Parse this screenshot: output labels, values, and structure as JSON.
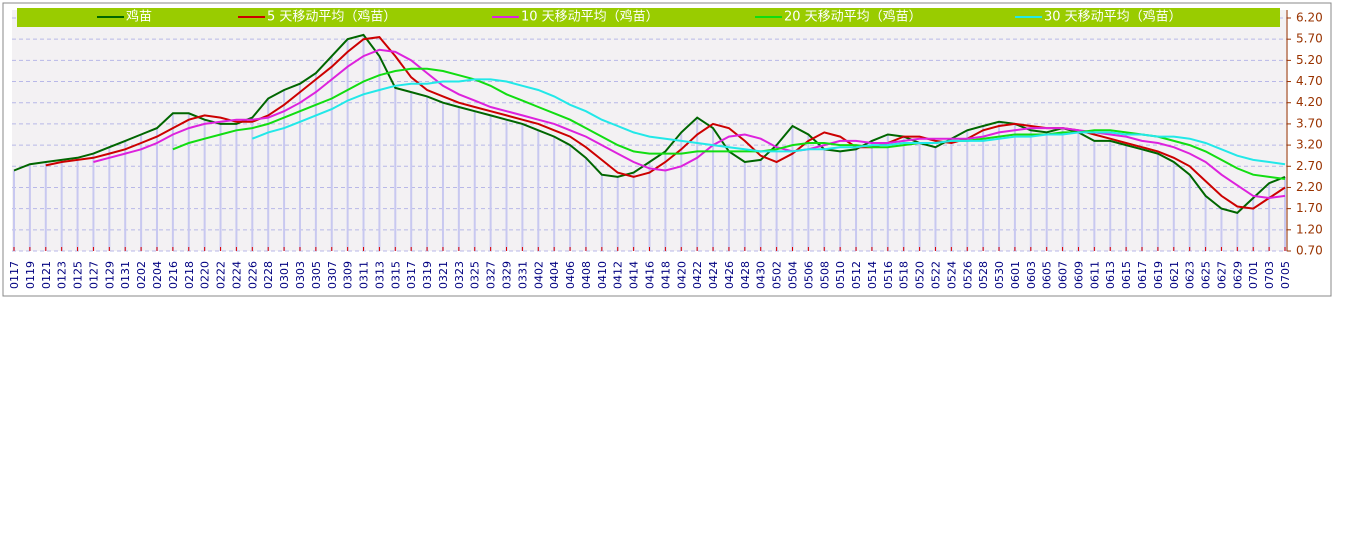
{
  "chart_data": {
    "type": "line",
    "categories": [
      "0117",
      "0119",
      "0121",
      "0123",
      "0125",
      "0127",
      "0129",
      "0131",
      "0202",
      "0204",
      "0216",
      "0218",
      "0220",
      "0222",
      "0224",
      "0226",
      "0228",
      "0301",
      "0303",
      "0305",
      "0307",
      "0309",
      "0311",
      "0313",
      "0315",
      "0317",
      "0319",
      "0321",
      "0323",
      "0325",
      "0327",
      "0329",
      "0331",
      "0402",
      "0404",
      "0406",
      "0408",
      "0410",
      "0412",
      "0414",
      "0416",
      "0418",
      "0420",
      "0422",
      "0424",
      "0426",
      "0428",
      "0430",
      "0502",
      "0504",
      "0506",
      "0508",
      "0510",
      "0512",
      "0514",
      "0516",
      "0518",
      "0520",
      "0522",
      "0524",
      "0526",
      "0528",
      "0530",
      "0601",
      "0603",
      "0605",
      "0607",
      "0609",
      "0611",
      "0613",
      "0615",
      "0617",
      "0619",
      "0621",
      "0623",
      "0625",
      "0627",
      "0629",
      "0701",
      "0703",
      "0705"
    ],
    "series": [
      {
        "name": "鸡苗",
        "color": "#006600",
        "values": [
          2.6,
          2.75,
          2.8,
          2.85,
          2.9,
          3.0,
          3.15,
          3.3,
          3.45,
          3.6,
          3.95,
          3.95,
          3.8,
          3.7,
          3.7,
          3.85,
          4.3,
          4.5,
          4.65,
          4.9,
          5.3,
          5.7,
          5.8,
          5.3,
          4.55,
          4.45,
          4.35,
          4.2,
          4.1,
          4.0,
          3.9,
          3.8,
          3.7,
          3.55,
          3.4,
          3.2,
          2.9,
          2.5,
          2.45,
          2.55,
          2.8,
          3.05,
          3.5,
          3.85,
          3.6,
          3.05,
          2.8,
          2.85,
          3.2,
          3.65,
          3.45,
          3.1,
          3.05,
          3.1,
          3.3,
          3.45,
          3.4,
          3.25,
          3.15,
          3.35,
          3.55,
          3.65,
          3.75,
          3.7,
          3.55,
          3.5,
          3.6,
          3.5,
          3.3,
          3.3,
          3.2,
          3.1,
          3.0,
          2.8,
          2.5,
          2.0,
          1.7,
          1.6,
          1.95,
          2.3,
          2.45
        ]
      },
      {
        "name": "5 天移动平均（鸡苗）",
        "color": "#cc0000",
        "values": [
          null,
          null,
          2.72,
          2.8,
          2.85,
          2.9,
          3.0,
          3.1,
          3.25,
          3.4,
          3.6,
          3.8,
          3.9,
          3.85,
          3.75,
          3.75,
          3.9,
          4.15,
          4.45,
          4.75,
          5.05,
          5.4,
          5.7,
          5.75,
          5.3,
          4.8,
          4.5,
          4.35,
          4.2,
          4.1,
          4.0,
          3.9,
          3.8,
          3.7,
          3.55,
          3.4,
          3.15,
          2.85,
          2.55,
          2.45,
          2.55,
          2.8,
          3.1,
          3.45,
          3.7,
          3.6,
          3.3,
          2.95,
          2.8,
          3.0,
          3.3,
          3.5,
          3.4,
          3.15,
          3.15,
          3.25,
          3.4,
          3.4,
          3.3,
          3.25,
          3.35,
          3.55,
          3.65,
          3.7,
          3.65,
          3.6,
          3.6,
          3.55,
          3.45,
          3.35,
          3.25,
          3.15,
          3.05,
          2.9,
          2.7,
          2.35,
          2.0,
          1.75,
          1.7,
          1.95,
          2.2
        ]
      },
      {
        "name": "10 天移动平均（鸡苗）",
        "color": "#dd22dd",
        "values": [
          null,
          null,
          null,
          null,
          null,
          2.8,
          2.9,
          3.0,
          3.1,
          3.25,
          3.45,
          3.6,
          3.7,
          3.75,
          3.8,
          3.8,
          3.85,
          4.0,
          4.2,
          4.45,
          4.75,
          5.05,
          5.3,
          5.45,
          5.4,
          5.2,
          4.9,
          4.6,
          4.4,
          4.25,
          4.1,
          4.0,
          3.9,
          3.8,
          3.7,
          3.55,
          3.4,
          3.2,
          3.0,
          2.8,
          2.65,
          2.6,
          2.7,
          2.9,
          3.2,
          3.4,
          3.45,
          3.35,
          3.15,
          3.05,
          3.1,
          3.2,
          3.3,
          3.3,
          3.25,
          3.25,
          3.3,
          3.35,
          3.35,
          3.35,
          3.35,
          3.4,
          3.5,
          3.55,
          3.6,
          3.6,
          3.6,
          3.55,
          3.5,
          3.45,
          3.4,
          3.3,
          3.25,
          3.15,
          3.0,
          2.8,
          2.5,
          2.25,
          2.0,
          1.95,
          2.0
        ]
      },
      {
        "name": "20 天移动平均（鸡苗）",
        "color": "#11dd11",
        "values": [
          null,
          null,
          null,
          null,
          null,
          null,
          null,
          null,
          null,
          null,
          3.1,
          3.25,
          3.35,
          3.45,
          3.55,
          3.6,
          3.7,
          3.85,
          4.0,
          4.15,
          4.3,
          4.5,
          4.7,
          4.85,
          4.95,
          5.0,
          5.0,
          4.95,
          4.85,
          4.75,
          4.6,
          4.4,
          4.25,
          4.1,
          3.95,
          3.8,
          3.6,
          3.4,
          3.2,
          3.05,
          3.0,
          3.0,
          3.0,
          3.05,
          3.05,
          3.05,
          3.05,
          3.05,
          3.1,
          3.2,
          3.25,
          3.25,
          3.2,
          3.2,
          3.15,
          3.15,
          3.2,
          3.25,
          3.25,
          3.3,
          3.3,
          3.35,
          3.4,
          3.45,
          3.45,
          3.45,
          3.5,
          3.5,
          3.55,
          3.55,
          3.5,
          3.45,
          3.4,
          3.3,
          3.2,
          3.05,
          2.85,
          2.65,
          2.5,
          2.45,
          2.4
        ]
      },
      {
        "name": "30 天移动平均（鸡苗）",
        "color": "#22e8e8",
        "values": [
          null,
          null,
          null,
          null,
          null,
          null,
          null,
          null,
          null,
          null,
          null,
          null,
          null,
          null,
          null,
          3.35,
          3.5,
          3.6,
          3.75,
          3.9,
          4.05,
          4.25,
          4.4,
          4.5,
          4.6,
          4.65,
          4.65,
          4.7,
          4.7,
          4.75,
          4.75,
          4.7,
          4.6,
          4.5,
          4.35,
          4.15,
          4.0,
          3.8,
          3.65,
          3.5,
          3.4,
          3.35,
          3.3,
          3.25,
          3.2,
          3.15,
          3.1,
          3.05,
          3.05,
          3.05,
          3.1,
          3.1,
          3.15,
          3.15,
          3.2,
          3.2,
          3.25,
          3.25,
          3.25,
          3.3,
          3.3,
          3.3,
          3.35,
          3.4,
          3.4,
          3.45,
          3.45,
          3.5,
          3.5,
          3.5,
          3.45,
          3.45,
          3.4,
          3.4,
          3.35,
          3.25,
          3.1,
          2.95,
          2.85,
          2.8,
          2.75
        ]
      }
    ],
    "ylim": [
      0.7,
      6.2
    ],
    "yticks": [
      {
        "value": 0.7,
        "label": "0.70"
      },
      {
        "value": 1.2,
        "label": "1.20"
      },
      {
        "value": 1.7,
        "label": "1.70"
      },
      {
        "value": 2.2,
        "label": "2.20"
      },
      {
        "value": 2.7,
        "label": "2.70"
      },
      {
        "value": 3.2,
        "label": "3.20"
      },
      {
        "value": 3.7,
        "label": "3.70"
      },
      {
        "value": 4.2,
        "label": "4.20"
      },
      {
        "value": 4.7,
        "label": "4.70"
      },
      {
        "value": 5.2,
        "label": "5.20"
      },
      {
        "value": 5.7,
        "label": "5.70"
      },
      {
        "value": 6.2,
        "label": "6.20"
      }
    ],
    "grid": true,
    "legend": "top",
    "bar_color": "#c8c8f0"
  }
}
